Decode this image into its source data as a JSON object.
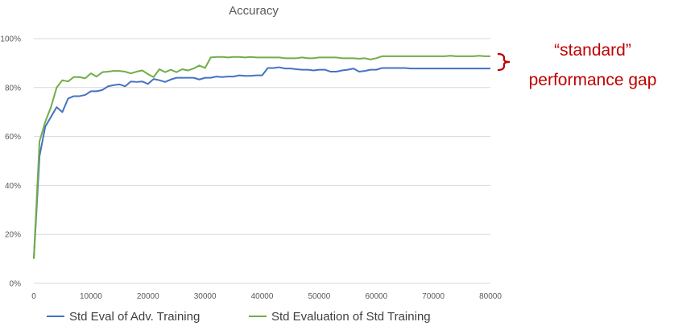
{
  "chart_data": {
    "type": "line",
    "title": "Accuracy",
    "xlabel": "",
    "ylabel": "",
    "xlim": [
      0,
      80000
    ],
    "ylim": [
      0,
      100
    ],
    "grid": true,
    "legend_position": "bottom",
    "x_ticks": [
      "0",
      "10000",
      "20000",
      "30000",
      "40000",
      "50000",
      "60000",
      "70000",
      "80000"
    ],
    "y_ticks": [
      "0%",
      "20%",
      "40%",
      "60%",
      "80%",
      "100%"
    ],
    "series": [
      {
        "name": "Std Eval of Adv. Training",
        "color": "#4472c4",
        "x": [
          0,
          1000,
          2000,
          3000,
          4000,
          5000,
          6000,
          7000,
          8000,
          9000,
          10000,
          11000,
          12000,
          13000,
          14000,
          15000,
          16000,
          17000,
          18000,
          19000,
          20000,
          21000,
          22000,
          23000,
          24000,
          25000,
          26000,
          27000,
          28000,
          29000,
          30000,
          31000,
          32000,
          33000,
          34000,
          35000,
          36000,
          37000,
          38000,
          39000,
          40000,
          41000,
          42000,
          43000,
          44000,
          45000,
          46000,
          47000,
          48000,
          49000,
          50000,
          51000,
          52000,
          53000,
          54000,
          55000,
          56000,
          57000,
          58000,
          59000,
          60000,
          61000,
          62000,
          63000,
          64000,
          65000,
          66000,
          67000,
          68000,
          69000,
          70000,
          71000,
          72000,
          73000,
          74000,
          75000,
          76000,
          77000,
          78000,
          79000,
          80000
        ],
        "values": [
          10,
          52,
          64,
          68,
          72,
          70,
          75.5,
          76.5,
          76.5,
          77,
          78.5,
          78.5,
          79,
          80.5,
          81,
          81.3,
          80.5,
          82.5,
          82.3,
          82.5,
          81.5,
          83.5,
          83,
          82.3,
          83.3,
          84,
          84,
          84,
          84,
          83.3,
          84,
          84,
          84.5,
          84.3,
          84.5,
          84.5,
          85,
          84.8,
          84.8,
          85,
          85,
          88,
          88,
          88.3,
          87.8,
          87.8,
          87.5,
          87.3,
          87.3,
          87,
          87.3,
          87.3,
          86.5,
          86.5,
          87,
          87.3,
          87.8,
          86.5,
          86.8,
          87.3,
          87.3,
          88,
          88,
          88,
          88,
          88,
          87.8,
          87.8,
          87.8,
          87.8,
          87.8,
          87.8,
          87.8,
          87.8,
          87.8,
          87.8,
          87.8,
          87.8,
          87.8,
          87.8,
          87.8
        ]
      },
      {
        "name": "Std Evaluation of Std Training",
        "color": "#70ad47",
        "x": [
          0,
          1000,
          2000,
          3000,
          4000,
          5000,
          6000,
          7000,
          8000,
          9000,
          10000,
          11000,
          12000,
          13000,
          14000,
          15000,
          16000,
          17000,
          18000,
          19000,
          20000,
          21000,
          22000,
          23000,
          24000,
          25000,
          26000,
          27000,
          28000,
          29000,
          30000,
          31000,
          32000,
          33000,
          34000,
          35000,
          36000,
          37000,
          38000,
          39000,
          40000,
          41000,
          42000,
          43000,
          44000,
          45000,
          46000,
          47000,
          48000,
          49000,
          50000,
          51000,
          52000,
          53000,
          54000,
          55000,
          56000,
          57000,
          58000,
          59000,
          60000,
          61000,
          62000,
          63000,
          64000,
          65000,
          66000,
          67000,
          68000,
          69000,
          70000,
          71000,
          72000,
          73000,
          74000,
          75000,
          76000,
          77000,
          78000,
          79000,
          80000
        ],
        "values": [
          10,
          58,
          66,
          72,
          80,
          83,
          82.5,
          84.3,
          84.3,
          83.8,
          85.8,
          84.5,
          86.3,
          86.5,
          86.8,
          86.8,
          86.5,
          85.8,
          86.5,
          87,
          85.5,
          84.3,
          87.5,
          86.3,
          87.3,
          86.3,
          87.5,
          87,
          87.8,
          89,
          88,
          92.3,
          92.5,
          92.5,
          92.3,
          92.5,
          92.5,
          92.3,
          92.5,
          92.3,
          92.3,
          92.3,
          92.3,
          92.3,
          92,
          92,
          92,
          92.3,
          92,
          92,
          92.3,
          92.3,
          92.3,
          92.3,
          92,
          92,
          92,
          91.8,
          92,
          91.5,
          92,
          92.8,
          92.8,
          92.8,
          92.8,
          92.8,
          92.8,
          92.8,
          92.8,
          92.8,
          92.8,
          92.8,
          92.8,
          93,
          92.8,
          92.8,
          92.8,
          92.8,
          93,
          92.8,
          92.8
        ]
      }
    ],
    "annotation": {
      "line1": "“standard”",
      "line2": "performance gap",
      "color": "#c00000"
    }
  }
}
